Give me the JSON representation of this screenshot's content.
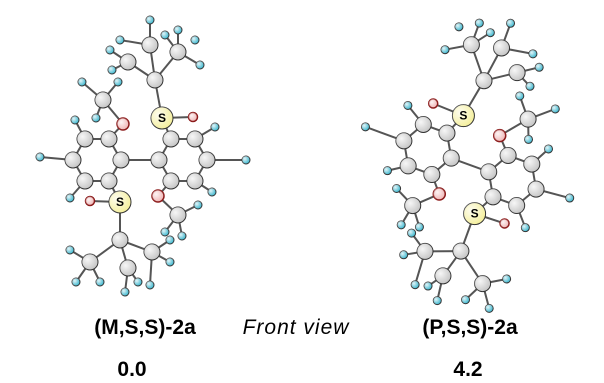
{
  "caption": "Front view",
  "structures": [
    {
      "label": "(M,S,S)-2a",
      "energy": "0.0",
      "sulfur_labels": [
        "S",
        "S"
      ]
    },
    {
      "label": "(P,S,S)-2a",
      "energy": "4.2",
      "sulfur_labels": [
        "S",
        "S"
      ]
    }
  ]
}
